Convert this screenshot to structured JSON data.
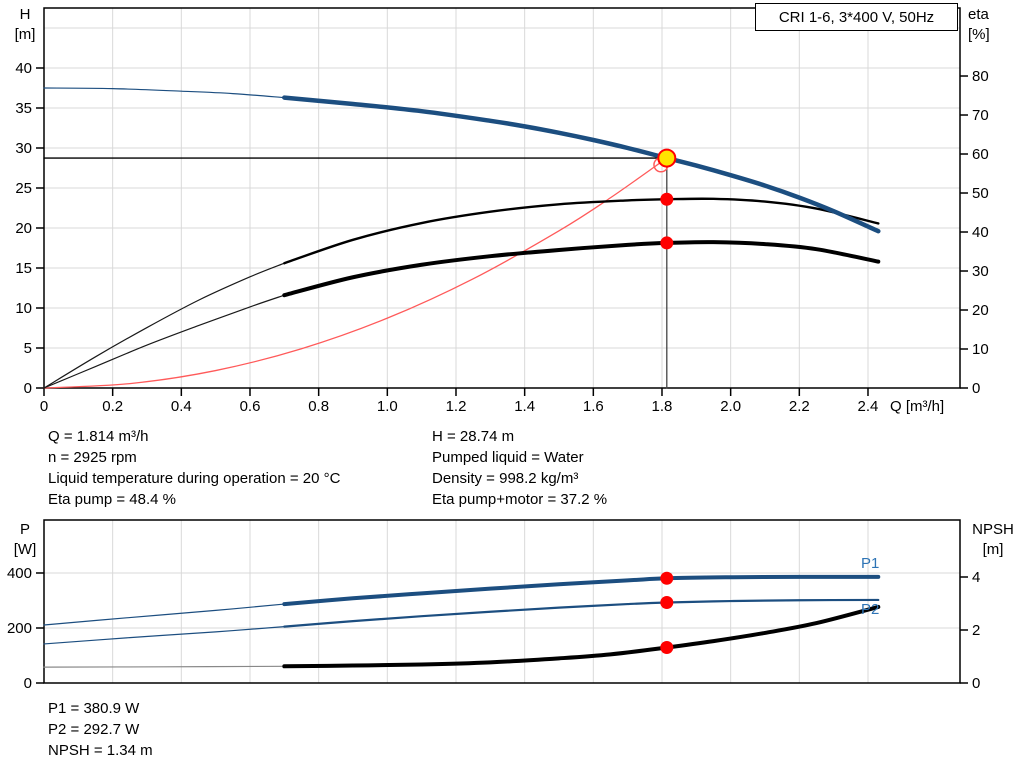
{
  "colors": {
    "curve_blue": "#1c4e80",
    "marker_red": "#ff0000",
    "system_red": "#ff5a5a",
    "duty_yellow": "#ffe300",
    "grid_gray": "#d9d9d9",
    "npsh_thin_gray": "#888888",
    "p_label_blue": "#2e74b5"
  },
  "info_top_left": [
    "Q = 1.814 m³/h",
    "n = 2925 rpm",
    "Liquid temperature during operation = 20 °C",
    "Eta pump = 48.4 %"
  ],
  "info_top_right": [
    "H = 28.74 m",
    "Pumped liquid = Water",
    "Density = 998.2 kg/m³",
    "Eta pump+motor = 37.2 %"
  ],
  "info_bottom": [
    "P1 = 380.9 W",
    "P2 = 292.7 W",
    "NPSH = 1.34 m"
  ],
  "chart_data": [
    {
      "type": "line",
      "title": "CRI 1-6, 3*400 V, 50Hz",
      "x_axis": {
        "label": "Q [m³/h]",
        "range": [
          0,
          2.668
        ],
        "ticks": {
          "values": [
            0,
            0.2,
            0.4,
            0.6,
            0.8,
            1.0,
            1.2,
            1.4,
            1.6,
            1.8,
            2.0,
            2.2,
            2.4
          ],
          "labels": [
            "0",
            "0.2",
            "0.4",
            "0.6",
            "0.8",
            "1.0",
            "1.2",
            "1.4",
            "1.6",
            "1.8",
            "2.0",
            "2.2",
            "2.4"
          ]
        }
      },
      "y_left": {
        "name": "H",
        "unit": "[m]",
        "range": [
          0,
          47.5
        ],
        "ticks": {
          "values": [
            0,
            5,
            10,
            15,
            20,
            25,
            30,
            35,
            40
          ],
          "labels": [
            "0",
            "5",
            "10",
            "15",
            "20",
            "25",
            "30",
            "35",
            "40"
          ]
        },
        "grid": [
          5,
          10,
          15,
          20,
          25,
          30,
          35,
          40,
          45
        ]
      },
      "y_right": {
        "name": "eta",
        "unit": "[%]",
        "range": [
          0,
          97.44
        ],
        "ticks": {
          "values": [
            0,
            10,
            20,
            30,
            40,
            50,
            60,
            70,
            80
          ],
          "labels": [
            "0",
            "10",
            "20",
            "30",
            "40",
            "50",
            "60",
            "70",
            "80"
          ]
        }
      },
      "duty_point": {
        "q": 1.814,
        "h": 28.74,
        "eta_pump": 48.4,
        "eta_pump_motor": 37.2
      },
      "series": [
        {
          "name": "duty-h-line",
          "axis": "left",
          "color": "#000000",
          "width": 1.3,
          "points": [
            [
              0,
              28.74
            ],
            [
              1.814,
              28.74
            ]
          ]
        },
        {
          "name": "duty-q-line",
          "axis": "left",
          "color": "#444444",
          "width": 1.3,
          "points": [
            [
              1.814,
              0
            ],
            [
              1.814,
              28.74
            ]
          ]
        },
        {
          "name": "system-curve",
          "axis": "left",
          "color": "#ff5a5a",
          "width": 1.3,
          "points": [
            [
              0,
              0
            ],
            [
              0.25,
              0.55
            ],
            [
              0.5,
              2.18
            ],
            [
              0.75,
              4.91
            ],
            [
              1.0,
              8.73
            ],
            [
              1.25,
              13.65
            ],
            [
              1.5,
              19.65
            ],
            [
              1.65,
              23.78
            ],
            [
              1.814,
              28.74
            ]
          ]
        },
        {
          "name": "eta-pump-curve-low",
          "axis": "right",
          "color": "#1a1a1a",
          "width": 1.2,
          "points": [
            [
              0,
              0
            ],
            [
              0.15,
              8
            ],
            [
              0.3,
              15.5
            ],
            [
              0.45,
              22.5
            ],
            [
              0.6,
              28.5
            ],
            [
              0.7,
              32
            ]
          ]
        },
        {
          "name": "eta-pump-curve",
          "axis": "right",
          "color": "#000000",
          "width": 2.4,
          "points": [
            [
              0.7,
              32
            ],
            [
              0.9,
              38
            ],
            [
              1.1,
              42.3
            ],
            [
              1.3,
              45.2
            ],
            [
              1.5,
              47.1
            ],
            [
              1.7,
              48.1
            ],
            [
              1.814,
              48.4
            ],
            [
              1.95,
              48.5
            ],
            [
              2.1,
              47.8
            ],
            [
              2.25,
              46
            ],
            [
              2.43,
              42.2
            ]
          ]
        },
        {
          "name": "eta-pump-motor-curve-low",
          "axis": "right",
          "color": "#1a1a1a",
          "width": 1.2,
          "points": [
            [
              0,
              0
            ],
            [
              0.15,
              5.5
            ],
            [
              0.3,
              11
            ],
            [
              0.45,
              16
            ],
            [
              0.6,
              20.8
            ],
            [
              0.7,
              23.8
            ]
          ]
        },
        {
          "name": "eta-pump-motor-curve",
          "axis": "right",
          "color": "#000000",
          "width": 4,
          "points": [
            [
              0.7,
              23.8
            ],
            [
              0.9,
              28.4
            ],
            [
              1.1,
              31.6
            ],
            [
              1.3,
              33.8
            ],
            [
              1.5,
              35.4
            ],
            [
              1.7,
              36.7
            ],
            [
              1.814,
              37.2
            ],
            [
              1.95,
              37.4
            ],
            [
              2.1,
              36.9
            ],
            [
              2.25,
              35.6
            ],
            [
              2.43,
              32.4
            ]
          ]
        },
        {
          "name": "hq-curve-low",
          "axis": "left",
          "color": "#1c4e80",
          "width": 1.2,
          "points": [
            [
              0,
              37.5
            ],
            [
              0.2,
              37.42
            ],
            [
              0.4,
              37.1
            ],
            [
              0.55,
              36.8
            ],
            [
              0.7,
              36.3
            ]
          ]
        },
        {
          "name": "hq-curve",
          "axis": "left",
          "color": "#1c4e80",
          "width": 4.5,
          "points": [
            [
              0.7,
              36.3
            ],
            [
              0.9,
              35.5
            ],
            [
              1.1,
              34.6
            ],
            [
              1.3,
              33.4
            ],
            [
              1.4,
              32.7
            ],
            [
              1.5,
              31.9
            ],
            [
              1.6,
              31.0
            ],
            [
              1.7,
              30.0
            ],
            [
              1.814,
              28.74
            ],
            [
              1.9,
              27.8
            ],
            [
              2.0,
              26.6
            ],
            [
              2.1,
              25.3
            ],
            [
              2.2,
              23.8
            ],
            [
              2.3,
              22.1
            ],
            [
              2.43,
              19.6
            ]
          ]
        }
      ],
      "markers": [
        {
          "name": "eta-pump-point",
          "shape": "dot",
          "axis": "right",
          "x": 1.814,
          "y": 48.4,
          "r": 6.5,
          "fill": "#ff0000"
        },
        {
          "name": "eta-pump-motor-point",
          "shape": "dot",
          "axis": "right",
          "x": 1.814,
          "y": 37.2,
          "r": 6.5,
          "fill": "#ff0000"
        },
        {
          "name": "system-intersection-ring",
          "shape": "ring",
          "axis": "left",
          "x": 1.797,
          "y": 27.9,
          "r": 7,
          "stroke": "#ff5a5a"
        },
        {
          "name": "duty-point",
          "shape": "duty",
          "axis": "left",
          "x": 1.814,
          "y": 28.74,
          "r": 8.5,
          "fill": "#ffe300",
          "stroke": "#ff0000"
        }
      ]
    },
    {
      "type": "line",
      "x_axis": {
        "label": "",
        "range": [
          0,
          2.668
        ],
        "ticks": {
          "values": [
            0.2,
            0.4,
            0.6,
            0.8,
            1.0,
            1.2,
            1.4,
            1.6,
            1.8,
            2.0,
            2.2,
            2.4
          ],
          "labels": []
        }
      },
      "y_left": {
        "name": "P",
        "unit": "[W]",
        "range": [
          0,
          592.7
        ],
        "ticks": {
          "values": [
            0,
            200,
            400
          ],
          "labels": [
            "0",
            "200",
            "400"
          ]
        },
        "grid": [
          200,
          400
        ]
      },
      "y_right": {
        "name": "NPSH",
        "unit": "[m]",
        "range": [
          0,
          6.151
        ],
        "ticks": {
          "values": [
            0,
            2,
            4
          ],
          "labels": [
            "0",
            "2",
            "4"
          ]
        }
      },
      "labels": {
        "p1": "P1",
        "p2": "P2"
      },
      "duty_point": {
        "q": 1.814,
        "p1": 380.9,
        "p2": 292.7,
        "npsh": 1.34
      },
      "series": [
        {
          "name": "p1-curve-low",
          "axis": "left",
          "color": "#1c4e80",
          "width": 1.2,
          "points": [
            [
              0,
              211
            ],
            [
              0.25,
              238
            ],
            [
              0.5,
              264
            ],
            [
              0.7,
              287
            ]
          ]
        },
        {
          "name": "p1-curve",
          "axis": "left",
          "color": "#1c4e80",
          "width": 4,
          "points": [
            [
              0.7,
              287
            ],
            [
              0.9,
              308
            ],
            [
              1.1,
              326
            ],
            [
              1.3,
              343
            ],
            [
              1.5,
              359
            ],
            [
              1.7,
              373
            ],
            [
              1.814,
              380.9
            ],
            [
              2.0,
              384.5
            ],
            [
              2.2,
              386
            ],
            [
              2.43,
              386
            ]
          ]
        },
        {
          "name": "p2-curve-low",
          "axis": "left",
          "color": "#1c4e80",
          "width": 1.2,
          "points": [
            [
              0,
              142
            ],
            [
              0.25,
              165
            ],
            [
              0.5,
              186
            ],
            [
              0.7,
              205
            ]
          ]
        },
        {
          "name": "p2-curve",
          "axis": "left",
          "color": "#1c4e80",
          "width": 2.2,
          "points": [
            [
              0.7,
              205
            ],
            [
              0.9,
              225
            ],
            [
              1.1,
              243
            ],
            [
              1.3,
              259
            ],
            [
              1.5,
              274
            ],
            [
              1.7,
              287
            ],
            [
              1.814,
              292.7
            ],
            [
              2.0,
              298
            ],
            [
              2.2,
              301
            ],
            [
              2.43,
              302
            ]
          ]
        },
        {
          "name": "npsh-curve-low",
          "axis": "right",
          "color": "#888888",
          "width": 1.2,
          "points": [
            [
              0,
              0.6
            ],
            [
              0.35,
              0.61
            ],
            [
              0.7,
              0.63
            ]
          ]
        },
        {
          "name": "npsh-curve",
          "axis": "right",
          "color": "#000000",
          "width": 4,
          "points": [
            [
              0.7,
              0.63
            ],
            [
              0.9,
              0.66
            ],
            [
              1.1,
              0.7
            ],
            [
              1.3,
              0.78
            ],
            [
              1.5,
              0.93
            ],
            [
              1.65,
              1.08
            ],
            [
              1.814,
              1.34
            ],
            [
              1.95,
              1.58
            ],
            [
              2.1,
              1.89
            ],
            [
              2.25,
              2.26
            ],
            [
              2.43,
              2.87
            ]
          ]
        }
      ],
      "markers": [
        {
          "name": "p1-point",
          "shape": "dot",
          "axis": "left",
          "x": 1.814,
          "y": 380.9,
          "r": 6.5,
          "fill": "#ff0000"
        },
        {
          "name": "p2-point",
          "shape": "dot",
          "axis": "left",
          "x": 1.814,
          "y": 292.7,
          "r": 6.5,
          "fill": "#ff0000"
        },
        {
          "name": "npsh-point",
          "shape": "dot",
          "axis": "right",
          "x": 1.814,
          "y": 1.34,
          "r": 6.5,
          "fill": "#ff0000"
        }
      ]
    }
  ]
}
